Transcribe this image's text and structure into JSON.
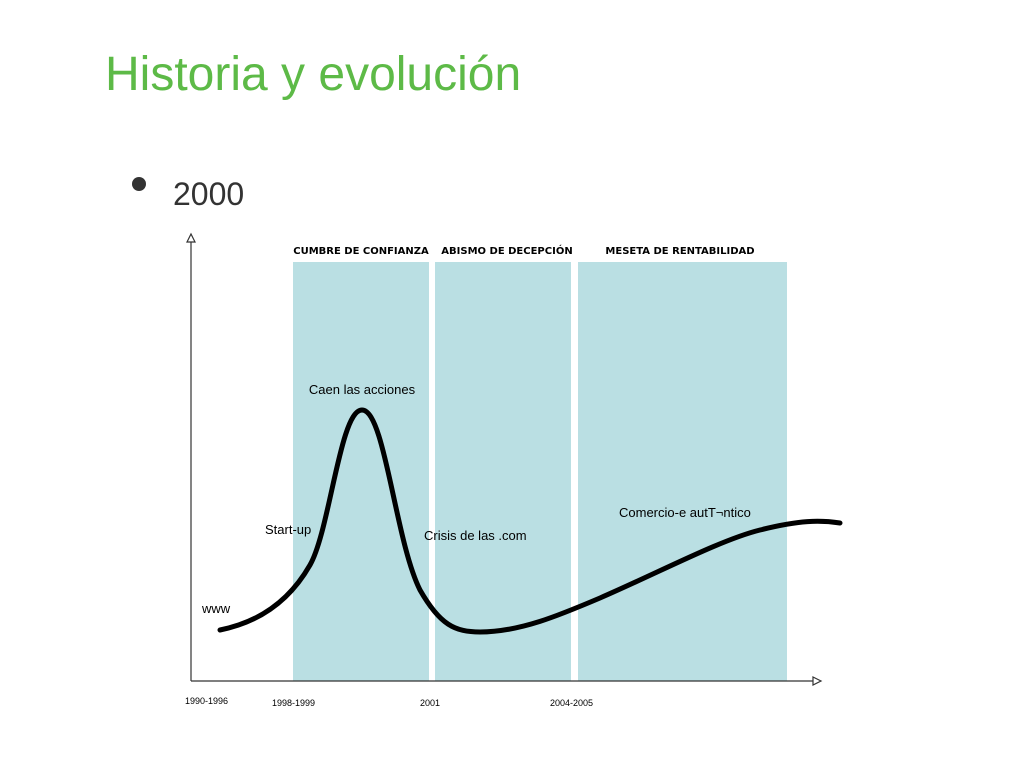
{
  "header": {
    "title": "Historia y evolución"
  },
  "bullet": "2000",
  "diagram": {
    "phases": [
      "CUMBRE DE CONFIANZA",
      "ABISMO DE DECEPCIÓN",
      "MESETA DE RENTABILIDAD"
    ],
    "annotations": [
      "Caen las acciones",
      "Start-up",
      "Crisis de las .com",
      "Comercio-e autT¬ntico",
      "www"
    ],
    "periods": [
      "1990-1996",
      "1998-1999",
      "2001",
      "2004-2005"
    ]
  }
}
